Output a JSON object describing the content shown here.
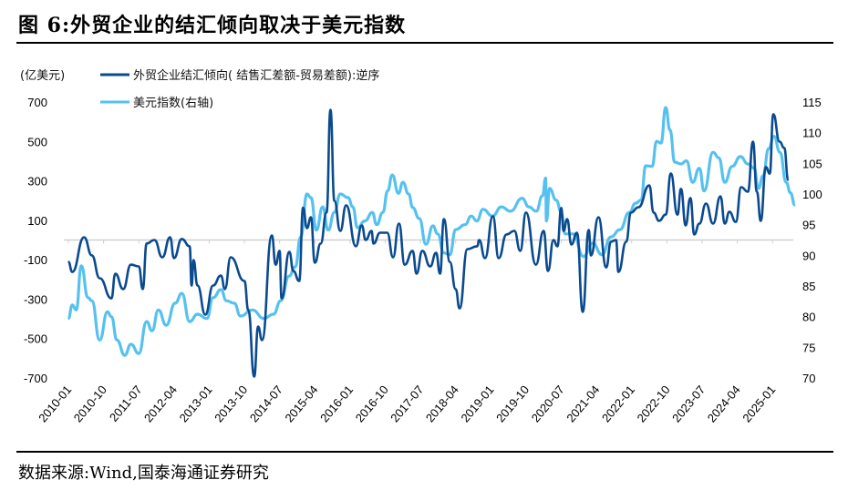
{
  "title": "图 6:外贸企业的结汇倾向取决于美元指数",
  "source": "数据来源:Wind,国泰海通证券研究",
  "colors": {
    "dark": "#0a4a8f",
    "light": "#56c1ef"
  },
  "chart_data": {
    "type": "line",
    "title": "外贸企业的结汇倾向取决于美元指数",
    "left_unit_label": "(亿美元)",
    "x_unit": "months since 2010-01",
    "x_tick_labels": [
      "2010-01",
      "2010-10",
      "2011-07",
      "2012-04",
      "2013-01",
      "2013-10",
      "2014-07",
      "2015-04",
      "2016-01",
      "2016-10",
      "2017-07",
      "2018-04",
      "2019-01",
      "2019-10",
      "2020-07",
      "2021-04",
      "2022-01",
      "2022-10",
      "2023-07",
      "2024-04",
      "2025-01"
    ],
    "y_left": {
      "ticks": [
        "700",
        "500",
        "300",
        "100",
        "-100",
        "-300",
        "-500",
        "-700"
      ],
      "range": [
        -700,
        700
      ],
      "reversed_note": "逆序"
    },
    "y_right": {
      "ticks": [
        "115",
        "110",
        "105",
        "100",
        "95",
        "90",
        "85",
        "80",
        "75",
        "70"
      ],
      "range": [
        70,
        115
      ]
    },
    "legend_placement": "top-left",
    "series": [
      {
        "name": "外贸企业结汇倾向( 结售汇差额-贸易差额):逆序",
        "axis": "left",
        "color": "#0a4a8f",
        "points": [
          [
            0,
            -111
          ],
          [
            1,
            -162
          ],
          [
            4,
            14
          ],
          [
            6,
            -78
          ],
          [
            8,
            -194
          ],
          [
            11,
            -296
          ],
          [
            12,
            -171
          ],
          [
            14,
            -249
          ],
          [
            16,
            -125
          ],
          [
            18,
            -134
          ],
          [
            19,
            -249
          ],
          [
            20,
            -18
          ],
          [
            22,
            0
          ],
          [
            24,
            -88
          ],
          [
            26,
            14
          ],
          [
            27,
            -92
          ],
          [
            29,
            5
          ],
          [
            31,
            -32
          ],
          [
            31.5,
            -231
          ],
          [
            32,
            -102
          ],
          [
            33,
            -231
          ],
          [
            35,
            -379
          ],
          [
            37,
            -231
          ],
          [
            39,
            -180
          ],
          [
            40,
            -249
          ],
          [
            41.5,
            -88
          ],
          [
            45,
            -208
          ],
          [
            46,
            -356
          ],
          [
            47.5,
            -693
          ],
          [
            48.5,
            -439
          ],
          [
            49.5,
            -508
          ],
          [
            52,
            23
          ],
          [
            53,
            -125
          ],
          [
            54,
            -55
          ],
          [
            54.5,
            -296
          ],
          [
            56.5,
            -60
          ],
          [
            57.5,
            -157
          ],
          [
            59,
            -208
          ],
          [
            60,
            164
          ],
          [
            61,
            60
          ],
          [
            62,
            115
          ],
          [
            63,
            -115
          ],
          [
            64.5,
            -18
          ],
          [
            66,
            139
          ],
          [
            67,
            660
          ],
          [
            68,
            199
          ],
          [
            69.5,
            46
          ],
          [
            71,
            176
          ],
          [
            73.5,
            -32
          ],
          [
            75,
            74
          ],
          [
            76,
            0
          ],
          [
            77.5,
            46
          ],
          [
            78,
            -18
          ],
          [
            79.7,
            37
          ],
          [
            81.5,
            37
          ],
          [
            83,
            -88
          ],
          [
            84.5,
            83
          ],
          [
            86,
            -125
          ],
          [
            88,
            -55
          ],
          [
            89,
            -171
          ],
          [
            90.5,
            -55
          ],
          [
            92.5,
            -134
          ],
          [
            94,
            -65
          ],
          [
            95,
            -171
          ],
          [
            96,
            106
          ],
          [
            97.5,
            -111
          ],
          [
            99,
            -249
          ],
          [
            100,
            -347
          ],
          [
            102,
            -46
          ],
          [
            104.5,
            -32
          ],
          [
            105,
            0
          ],
          [
            106.5,
            -92
          ],
          [
            108.5,
            120
          ],
          [
            110,
            -92
          ],
          [
            112,
            28
          ],
          [
            114,
            46
          ],
          [
            115.5,
            -55
          ],
          [
            117,
            139
          ],
          [
            119.5,
            -125
          ],
          [
            121.5,
            46
          ],
          [
            122.6,
            -157
          ],
          [
            124,
            0
          ],
          [
            125,
            -32
          ],
          [
            126,
            162
          ],
          [
            126.6,
            46
          ],
          [
            127.5,
            106
          ],
          [
            128.6,
            -23
          ],
          [
            130,
            37
          ],
          [
            131.5,
            -365
          ],
          [
            133,
            51
          ],
          [
            133.6,
            -78
          ],
          [
            135.5,
            115
          ],
          [
            137.5,
            -139
          ],
          [
            138.7,
            -9
          ],
          [
            140,
            0
          ],
          [
            140.6,
            -162
          ],
          [
            142.6,
            -9
          ],
          [
            143.8,
            139
          ],
          [
            145.7,
            166
          ],
          [
            148.5,
            277
          ],
          [
            149.6,
            139
          ],
          [
            151,
            97
          ],
          [
            152.7,
            129
          ],
          [
            154,
            337
          ],
          [
            155.7,
            129
          ],
          [
            156.6,
            259
          ],
          [
            157.8,
            74
          ],
          [
            159,
            213
          ],
          [
            160,
            28
          ],
          [
            161.3,
            83
          ],
          [
            163,
            185
          ],
          [
            164.8,
            83
          ],
          [
            166.7,
            222
          ],
          [
            167.8,
            83
          ],
          [
            169,
            143
          ],
          [
            170.6,
            92
          ],
          [
            172,
            268
          ],
          [
            173.7,
            245
          ],
          [
            175,
            499
          ],
          [
            176,
            245
          ],
          [
            177,
            97
          ],
          [
            178.3,
            370
          ],
          [
            179.3,
            337
          ],
          [
            180.2,
            638
          ],
          [
            181.8,
            499
          ],
          [
            183,
            467
          ],
          [
            184,
            305
          ]
        ]
      },
      {
        "name": "美元指数(右轴)",
        "axis": "right",
        "color": "#56c1ef",
        "points": [
          [
            0,
            79.7
          ],
          [
            1,
            81.9
          ],
          [
            2,
            81.1
          ],
          [
            3.3,
            88.3
          ],
          [
            5,
            83.1
          ],
          [
            6,
            82.6
          ],
          [
            8,
            76.2
          ],
          [
            10,
            80.8
          ],
          [
            11,
            80
          ],
          [
            12.4,
            76.2
          ],
          [
            14.4,
            73.7
          ],
          [
            16,
            75.5
          ],
          [
            18,
            74
          ],
          [
            20,
            79.2
          ],
          [
            21.4,
            77.7
          ],
          [
            23,
            81.1
          ],
          [
            25,
            78.6
          ],
          [
            27.3,
            82.2
          ],
          [
            29,
            83.8
          ],
          [
            31,
            79.2
          ],
          [
            33,
            80.4
          ],
          [
            35.4,
            79.7
          ],
          [
            37,
            83.1
          ],
          [
            39,
            84.4
          ],
          [
            40.4,
            82.6
          ],
          [
            42.4,
            82.2
          ],
          [
            44,
            80.1
          ],
          [
            47,
            81.1
          ],
          [
            50,
            79.7
          ],
          [
            52.4,
            80.4
          ],
          [
            54.3,
            82.6
          ],
          [
            56.4,
            86.6
          ],
          [
            58,
            88.1
          ],
          [
            59.4,
            93
          ],
          [
            61,
            100
          ],
          [
            62,
            99.4
          ],
          [
            63.4,
            94.1
          ],
          [
            65,
            97.9
          ],
          [
            66.4,
            94.1
          ],
          [
            68,
            97
          ],
          [
            69.5,
            100
          ],
          [
            71.5,
            99.4
          ],
          [
            72.7,
            97.9
          ],
          [
            73.9,
            94.5
          ],
          [
            75.8,
            95.6
          ],
          [
            77.7,
            97
          ],
          [
            78.8,
            95
          ],
          [
            80.4,
            97
          ],
          [
            81.6,
            100.5
          ],
          [
            82.8,
            103.1
          ],
          [
            84.4,
            100.1
          ],
          [
            85.5,
            101.9
          ],
          [
            87,
            100
          ],
          [
            88,
            97.8
          ],
          [
            89.7,
            96
          ],
          [
            91.4,
            91.8
          ],
          [
            93.2,
            94.8
          ],
          [
            94.4,
            93.5
          ],
          [
            96,
            90.4
          ],
          [
            97.5,
            90.1
          ],
          [
            99,
            94.2
          ],
          [
            101.4,
            95
          ],
          [
            103,
            96.4
          ],
          [
            104.4,
            95.6
          ],
          [
            106,
            97.5
          ],
          [
            108.4,
            96.4
          ],
          [
            110.7,
            97.9
          ],
          [
            113,
            97.2
          ],
          [
            116,
            99.3
          ],
          [
            117.7,
            97.9
          ],
          [
            119.6,
            97.2
          ],
          [
            121.2,
            99.7
          ],
          [
            122,
            102.6
          ],
          [
            122.2,
            95.6
          ],
          [
            123,
            100.9
          ],
          [
            124.7,
            99
          ],
          [
            126,
            97
          ],
          [
            127,
            93.5
          ],
          [
            129,
            93.5
          ],
          [
            131.7,
            89.8
          ],
          [
            134,
            92
          ],
          [
            136.4,
            90.1
          ],
          [
            138.7,
            93
          ],
          [
            141,
            94.2
          ],
          [
            143.4,
            97
          ],
          [
            145,
            98.5
          ],
          [
            146.4,
            99
          ],
          [
            147.6,
            104.6
          ],
          [
            149.2,
            104.5
          ],
          [
            150.4,
            108.6
          ],
          [
            151.5,
            108.3
          ],
          [
            152.7,
            114.1
          ],
          [
            153.8,
            110.4
          ],
          [
            155,
            105.2
          ],
          [
            156.6,
            104.9
          ],
          [
            158,
            105.4
          ],
          [
            159.6,
            101.9
          ],
          [
            161.3,
            104.2
          ],
          [
            162.5,
            100.5
          ],
          [
            164.8,
            106.8
          ],
          [
            166.3,
            105.9
          ],
          [
            167.8,
            101.9
          ],
          [
            169.7,
            104.5
          ],
          [
            171.8,
            106.1
          ],
          [
            173.7,
            104.9
          ],
          [
            175.3,
            104.2
          ],
          [
            176.4,
            100.9
          ],
          [
            177.6,
            103
          ],
          [
            179,
            107.4
          ],
          [
            180.4,
            109.4
          ],
          [
            181.9,
            106.8
          ],
          [
            183.5,
            101.9
          ],
          [
            184.6,
            100.2
          ],
          [
            185.7,
            98.2
          ]
        ]
      }
    ]
  }
}
